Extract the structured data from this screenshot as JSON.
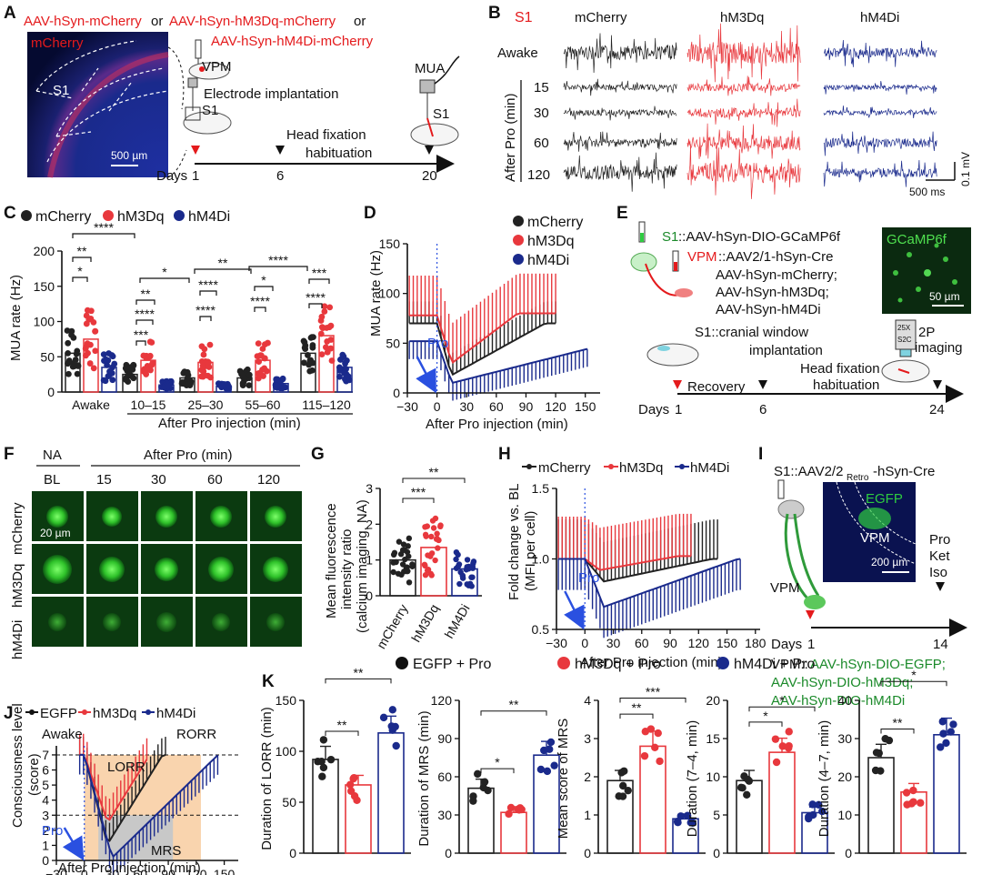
{
  "colors": {
    "mcherry": "#222222",
    "hm3dq": "#e8383d",
    "hm4di": "#1a2a8c",
    "fluor": "#2ecc40",
    "mred": "#e41a1c",
    "orange": "#f8c99a",
    "gray": "#c8c8c8"
  },
  "panels": {
    "A": "A",
    "B": "B",
    "C": "C",
    "D": "D",
    "E": "E",
    "F": "F",
    "G": "G",
    "H": "H",
    "I": "I",
    "J": "J",
    "K": "K"
  },
  "panelA": {
    "virus1": "AAV-hSyn-mCherry",
    "or1": "or",
    "virus2": "AAV-hSyn-hM3Dq-mCherry",
    "or2": "or",
    "virus3": "AAV-hSyn-hM4Di-mCherry",
    "image_label": "mCherry",
    "region": "S1",
    "scale": "500 µm",
    "vpm": "VPM",
    "electrode": "Electrode implantation",
    "s1": "S1",
    "mua": "MUA",
    "s1b": "S1",
    "days": "Days",
    "d1": "1",
    "d6": "6",
    "d20": "20",
    "step1": "Head fixation",
    "step2": "habituation"
  },
  "panelB": {
    "region": "S1",
    "groups": [
      "mCherry",
      "hM3Dq",
      "hM4Di"
    ],
    "rows": [
      "Awake",
      "15",
      "30",
      "60",
      "120"
    ],
    "axis": "After Pro (min)",
    "scale_v": "0.1 mV",
    "scale_t": "500 ms"
  },
  "legend3": [
    "mCherry",
    "hM3Dq",
    "hM4Di"
  ],
  "panelC": {
    "ylabel": "MUA rate (Hz)",
    "yticks": [
      "0",
      "50",
      "100",
      "150",
      "200"
    ],
    "groups": [
      "Awake",
      "10–15",
      "25–30",
      "55–60",
      "115–120"
    ],
    "xlabel": "After Pro injection (min)",
    "means": [
      [
        55,
        75,
        35
      ],
      [
        25,
        45,
        10
      ],
      [
        20,
        42,
        8
      ],
      [
        20,
        45,
        12
      ],
      [
        55,
        80,
        35
      ]
    ],
    "sig": [
      "****",
      "**",
      "*",
      "*",
      "**",
      "****",
      "***",
      "**",
      "****",
      "****",
      "****",
      "*",
      "****",
      "***",
      "****"
    ]
  },
  "panelD": {
    "ylabel": "MUA rate (Hz)",
    "xlabel": "After Pro injection (min)",
    "pro": "Pro",
    "yticks": [
      "0",
      "50",
      "100",
      "150"
    ],
    "xticks": [
      "−30",
      "0",
      "30",
      "60",
      "90",
      "120",
      "150"
    ],
    "xlim": [
      -30,
      165
    ],
    "ylim": [
      0,
      150
    ]
  },
  "panelE": {
    "s1": "S1",
    "s1virus": "::AAV-hSyn-DIO-GCaMP6f",
    "vpm": "VPM",
    "vpmvirus": "::AAV2/1-hSyn-Cre",
    "v2": "AAV-hSyn-mCherry;",
    "v3": "AAV-hSyn-hM3Dq;",
    "v4": "AAV-hSyn-hM4Di",
    "image_label": "GCaMP6f",
    "scale": "50 µm",
    "window": "S1::cranial window",
    "implant": "implantation",
    "obj1": "25X",
    "obj2": "S2C",
    "tp1": "2P",
    "tp2": "imaging",
    "days": "Days",
    "d1": "1",
    "d6": "6",
    "d24": "24",
    "recovery": "Recovery",
    "step1": "Head fixation",
    "step2": "habituation"
  },
  "panelF": {
    "na": "NA",
    "bl": "BL",
    "after": "After Pro (min)",
    "times": [
      "15",
      "30",
      "60",
      "120"
    ],
    "rows": [
      "mCherry",
      "hM3Dq",
      "hM4Di"
    ],
    "scale": "20 µm"
  },
  "panelG": {
    "ylabel1": "Mean fluorescence",
    "ylabel2": "intensity ratio",
    "ylabel3": "(calcium imaging, NA)",
    "yticks": [
      "0",
      "1",
      "2",
      "3"
    ],
    "groups": [
      "mCherry",
      "hM3Dq",
      "hM4Di"
    ],
    "means": [
      1.0,
      1.35,
      0.75
    ],
    "sig": [
      "**",
      "***"
    ]
  },
  "panelH": {
    "ylabel1": "Fold change vs. BL",
    "ylabel2": "(MFI per cell)",
    "yticks": [
      "0.5",
      "1.0",
      "1.5"
    ],
    "xticks": [
      "−30",
      "0",
      "30",
      "60",
      "90",
      "120",
      "150",
      "180"
    ],
    "xlabel": "After Pro injection (min)",
    "pro": "Pro",
    "xlim": [
      -30,
      185
    ],
    "ylim": [
      0.5,
      1.5
    ]
  },
  "panelI": {
    "header": "S1::AAV2/2",
    "retro": "Retro",
    "header2": "-hSyn-Cre",
    "egfp": "EGFP",
    "vpm_img": "VPM",
    "scale": "200 µm",
    "vpm": "VPM",
    "drugs": [
      "Pro",
      "Ket",
      "Iso"
    ],
    "days": "Days",
    "d1": "1",
    "d14": "14",
    "vpm2": "VPM::",
    "v1": "AAV-hSyn-DIO-EGFP;",
    "v2": "AAV-hSyn-DIO-hM3Dq;",
    "v3": "AAV-hSyn-DIO-hM4Di"
  },
  "panelJ": {
    "legend": [
      "EGFP",
      "hM3Dq",
      "hM4Di"
    ],
    "awake": "Awake",
    "rorr": "RORR",
    "lorr": "LORR",
    "mrs": "MRS",
    "pro": "Pro",
    "ylabel1": "Consciousness level",
    "ylabel2": "(score)",
    "xlabel": "After Pro injection (min)",
    "yticks": [
      "0",
      "1",
      "2",
      "3",
      "4",
      "5",
      "6",
      "7"
    ],
    "xticks": [
      "−30",
      "0",
      "30",
      "60",
      "90",
      "120",
      "150"
    ],
    "xlim": [
      -30,
      165
    ],
    "ylim": [
      0,
      7.6
    ]
  },
  "panelK": {
    "legend": [
      "EGFP + Pro",
      "hM3Dq + Pro",
      "hM4Di + Pro"
    ],
    "plots": [
      {
        "ylabel": "Duration of LORR (min)",
        "yticks": [
          "0",
          "50",
          "100",
          "150"
        ],
        "ymax": 150,
        "means": [
          92,
          67,
          118
        ],
        "sig": [
          "**",
          "**"
        ]
      },
      {
        "ylabel": "Duration of MRS (min)",
        "yticks": [
          "0",
          "30",
          "60",
          "90",
          "120"
        ],
        "ymax": 120,
        "means": [
          51,
          32,
          77
        ],
        "sig": [
          "*",
          "**"
        ]
      },
      {
        "ylabel": "Mean score of MRS",
        "yticks": [
          "0",
          "1",
          "2",
          "3",
          "4"
        ],
        "ymax": 4,
        "means": [
          1.9,
          2.8,
          0.9
        ],
        "sig": [
          "**",
          "***"
        ]
      },
      {
        "ylabel": "Duration (7–4, min)",
        "yticks": [
          "0",
          "5",
          "10",
          "15",
          "20"
        ],
        "ymax": 20,
        "means": [
          9.5,
          13.2,
          5.3
        ],
        "sig": [
          "*",
          "*"
        ]
      },
      {
        "ylabel": "Duration (4–7, min)",
        "yticks": [
          "0",
          "10",
          "20",
          "30",
          "40"
        ],
        "ymax": 40,
        "means": [
          25,
          16,
          31
        ],
        "sig": [
          "**",
          "*"
        ]
      }
    ]
  }
}
